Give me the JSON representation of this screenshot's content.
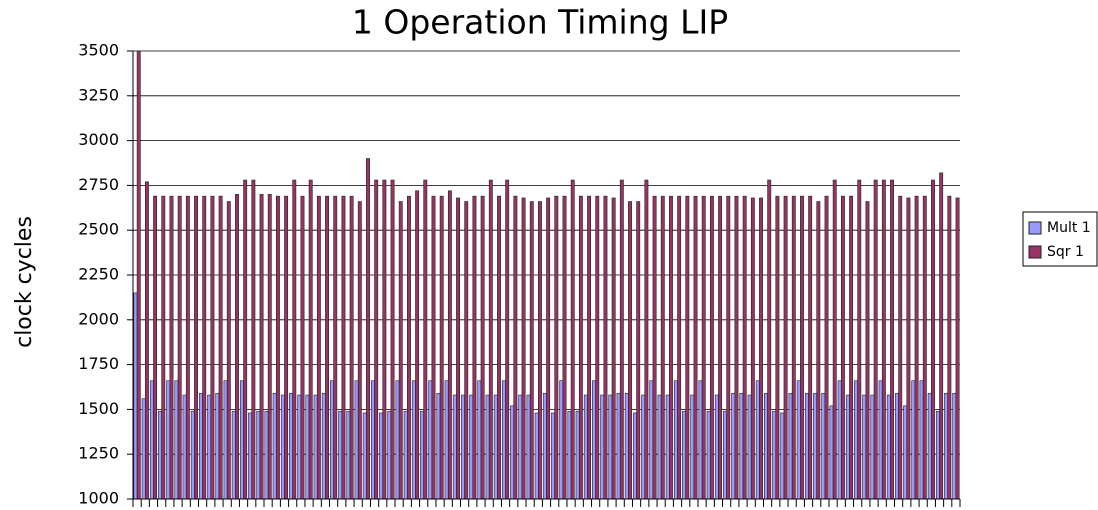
{
  "chart_data": {
    "type": "bar",
    "title": "1 Operation Timing LIP",
    "y_label": "clock cycles",
    "categories": [
      null,
      null,
      null,
      null,
      null,
      null,
      null,
      null,
      null,
      null,
      null,
      null,
      null,
      null,
      null,
      null,
      null,
      null,
      null,
      null,
      null,
      null,
      null,
      null,
      null,
      null,
      null,
      null,
      null,
      null,
      null,
      null,
      null,
      null,
      null,
      null,
      null,
      null,
      null,
      null,
      null,
      null,
      null,
      null,
      null,
      null,
      null,
      null,
      null,
      null,
      null,
      null,
      null,
      null,
      null,
      null,
      null,
      null,
      null,
      null,
      null,
      null,
      null,
      null,
      null,
      null,
      null,
      null,
      null,
      null,
      null,
      null,
      null,
      null,
      null,
      null,
      null,
      null,
      null,
      null,
      null,
      null,
      null,
      null,
      null,
      null,
      null,
      null,
      null,
      null,
      null,
      null,
      null,
      null,
      null,
      null,
      null,
      null,
      null,
      null,
      null
    ],
    "series": [
      {
        "name": "Mult 1",
        "color": "#9999ff",
        "values": [
          2150,
          1560,
          1660,
          1490,
          1660,
          1660,
          1580,
          1490,
          1590,
          1580,
          1590,
          1660,
          1490,
          1660,
          1480,
          1490,
          1490,
          1590,
          1580,
          1590,
          1580,
          1580,
          1580,
          1590,
          1660,
          1490,
          1490,
          1660,
          1480,
          1660,
          1480,
          1490,
          1660,
          1490,
          1660,
          1490,
          1660,
          1590,
          1660,
          1580,
          1580,
          1580,
          1660,
          1580,
          1580,
          1660,
          1520,
          1580,
          1580,
          1480,
          1590,
          1480,
          1660,
          1490,
          1490,
          1580,
          1660,
          1580,
          1580,
          1590,
          1590,
          1480,
          1580,
          1660,
          1580,
          1580,
          1660,
          1490,
          1580,
          1660,
          1490,
          1580,
          1490,
          1590,
          1590,
          1580,
          1660,
          1590,
          1490,
          1480,
          1590,
          1660,
          1590,
          1590,
          1590,
          1520,
          1660,
          1580,
          1660,
          1580,
          1580,
          1660,
          1580,
          1590,
          1520,
          1660,
          1660,
          1590,
          1490,
          1590,
          1590
        ]
      },
      {
        "name": "Sqr 1",
        "color": "#993366",
        "values": [
          3500,
          2770,
          2690,
          2690,
          2690,
          2690,
          2690,
          2690,
          2690,
          2690,
          2690,
          2660,
          2700,
          2780,
          2780,
          2700,
          2700,
          2690,
          2690,
          2780,
          2690,
          2780,
          2690,
          2690,
          2690,
          2690,
          2690,
          2660,
          2900,
          2780,
          2780,
          2780,
          2660,
          2690,
          2720,
          2780,
          2690,
          2690,
          2720,
          2680,
          2660,
          2690,
          2690,
          2780,
          2690,
          2780,
          2690,
          2680,
          2660,
          2660,
          2680,
          2690,
          2690,
          2780,
          2690,
          2690,
          2690,
          2690,
          2680,
          2780,
          2660,
          2660,
          2780,
          2690,
          2690,
          2690,
          2690,
          2690,
          2690,
          2690,
          2690,
          2690,
          2690,
          2690,
          2690,
          2680,
          2680,
          2780,
          2690,
          2690,
          2690,
          2690,
          2690,
          2660,
          2690,
          2780,
          2690,
          2690,
          2780,
          2660,
          2780,
          2780,
          2780,
          2690,
          2680,
          2690,
          2690,
          2780,
          2820,
          2690,
          2680
        ]
      }
    ],
    "ylim": [
      1000,
      3500
    ],
    "yticks": [
      1000,
      1250,
      1500,
      1750,
      2000,
      2250,
      2500,
      2750,
      3000,
      3250,
      3500
    ],
    "grid": true,
    "legend": "right"
  }
}
